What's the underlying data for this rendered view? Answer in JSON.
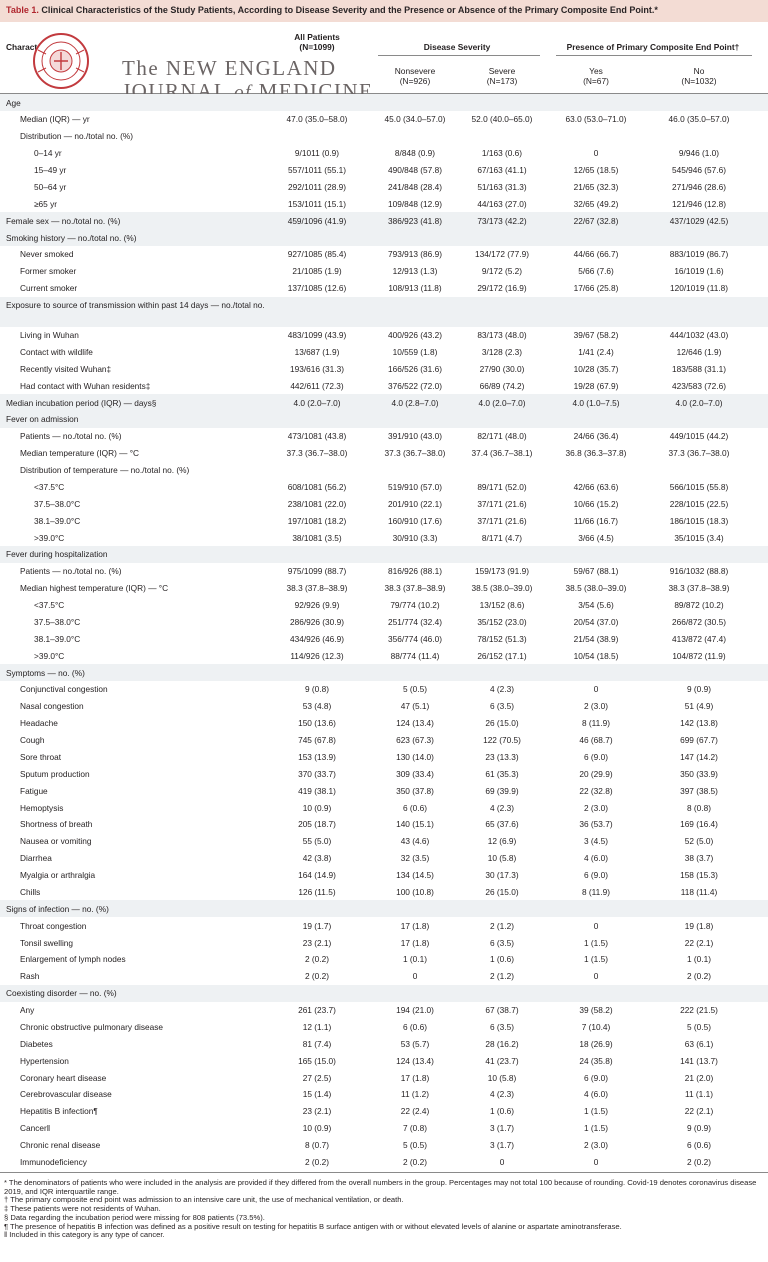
{
  "table": {
    "title_label": "Table 1.",
    "title_text": "Clinical Characteristics of the Study Patients, According to Disease Severity and the Presence or Absence of the Primary Composite End Point.*"
  },
  "header": {
    "characteristic": "Characteristic",
    "all_patients": "All Patients",
    "all_n": "(N=1099)",
    "disease_severity": "Disease Severity",
    "nonsevere": "Nonsevere",
    "nonsevere_n": "(N=926)",
    "severe": "Severe",
    "severe_n": "(N=173)",
    "end_point": "Presence of Primary Composite End Point†",
    "yes": "Yes",
    "yes_n": "(N=67)",
    "no": "No",
    "no_n": "(N=1032)"
  },
  "watermark": {
    "line1": "The NEW ENGLAND",
    "line2_a": "JOURNAL",
    "line2_of": "of",
    "line2_b": "MEDICINE",
    "seal_text": "MEDICINE · NEW ENGLAND"
  },
  "rows": [
    {
      "label": "Age",
      "indent": 0,
      "values": [
        "",
        "",
        "",
        "",
        ""
      ]
    },
    {
      "label": "Median (IQR) — yr",
      "indent": 1,
      "values": [
        "47.0 (35.0–58.0)",
        "45.0 (34.0–57.0)",
        "52.0 (40.0–65.0)",
        "63.0 (53.0–71.0)",
        "46.0 (35.0–57.0)"
      ]
    },
    {
      "label": "Distribution — no./total no. (%)",
      "indent": 1,
      "values": [
        "",
        "",
        "",
        "",
        ""
      ]
    },
    {
      "label": "0–14 yr",
      "indent": 2,
      "values": [
        "9/1011 (0.9)",
        "8/848 (0.9)",
        "1/163 (0.6)",
        "0",
        "9/946 (1.0)"
      ]
    },
    {
      "label": "15–49 yr",
      "indent": 2,
      "values": [
        "557/1011 (55.1)",
        "490/848 (57.8)",
        "67/163 (41.1)",
        "12/65 (18.5)",
        "545/946 (57.6)"
      ]
    },
    {
      "label": "50–64 yr",
      "indent": 2,
      "values": [
        "292/1011 (28.9)",
        "241/848 (28.4)",
        "51/163 (31.3)",
        "21/65 (32.3)",
        "271/946 (28.6)"
      ]
    },
    {
      "label": "≥65 yr",
      "indent": 2,
      "values": [
        "153/1011 (15.1)",
        "109/848 (12.9)",
        "44/163 (27.0)",
        "32/65 (49.2)",
        "121/946 (12.8)"
      ]
    },
    {
      "label": "Female sex — no./total no. (%)",
      "indent": 0,
      "values": [
        "459/1096 (41.9)",
        "386/923 (41.8)",
        "73/173 (42.2)",
        "22/67 (32.8)",
        "437/1029 (42.5)"
      ]
    },
    {
      "label": "Smoking history — no./total no. (%)",
      "indent": 0,
      "values": [
        "",
        "",
        "",
        "",
        ""
      ]
    },
    {
      "label": "Never smoked",
      "indent": 1,
      "values": [
        "927/1085 (85.4)",
        "793/913 (86.9)",
        "134/172 (77.9)",
        "44/66 (66.7)",
        "883/1019 (86.7)"
      ]
    },
    {
      "label": "Former smoker",
      "indent": 1,
      "values": [
        "21/1085 (1.9)",
        "12/913 (1.3)",
        "9/172 (5.2)",
        "5/66 (7.6)",
        "16/1019 (1.6)"
      ]
    },
    {
      "label": "Current smoker",
      "indent": 1,
      "values": [
        "137/1085 (12.6)",
        "108/913 (11.8)",
        "29/172 (16.9)",
        "17/66 (25.8)",
        "120/1019 (11.8)"
      ]
    },
    {
      "label": "Exposure to source of transmission within past 14 days — no./total no.",
      "indent": 0,
      "tall": true,
      "values": [
        "",
        "",
        "",
        "",
        ""
      ]
    },
    {
      "label": "Living in Wuhan",
      "indent": 1,
      "values": [
        "483/1099 (43.9)",
        "400/926 (43.2)",
        "83/173 (48.0)",
        "39/67 (58.2)",
        "444/1032 (43.0)"
      ]
    },
    {
      "label": "Contact with wildlife",
      "indent": 1,
      "values": [
        "13/687 (1.9)",
        "10/559 (1.8)",
        "3/128 (2.3)",
        "1/41 (2.4)",
        "12/646 (1.9)"
      ]
    },
    {
      "label": "Recently visited Wuhan‡",
      "indent": 1,
      "values": [
        "193/616 (31.3)",
        "166/526 (31.6)",
        "27/90 (30.0)",
        "10/28 (35.7)",
        "183/588 (31.1)"
      ]
    },
    {
      "label": "Had contact with Wuhan residents‡",
      "indent": 1,
      "values": [
        "442/611 (72.3)",
        "376/522 (72.0)",
        "66/89 (74.2)",
        "19/28 (67.9)",
        "423/583 (72.6)"
      ]
    },
    {
      "label": "Median incubation period (IQR) — days§",
      "indent": 0,
      "values": [
        "4.0 (2.0–7.0)",
        "4.0 (2.8–7.0)",
        "4.0 (2.0–7.0)",
        "4.0 (1.0–7.5)",
        "4.0 (2.0–7.0)"
      ]
    },
    {
      "label": "Fever on admission",
      "indent": 0,
      "values": [
        "",
        "",
        "",
        "",
        ""
      ]
    },
    {
      "label": "Patients — no./total no. (%)",
      "indent": 1,
      "values": [
        "473/1081 (43.8)",
        "391/910 (43.0)",
        "82/171 (48.0)",
        "24/66 (36.4)",
        "449/1015 (44.2)"
      ]
    },
    {
      "label": "Median temperature (IQR) — °C",
      "indent": 1,
      "values": [
        "37.3 (36.7–38.0)",
        "37.3 (36.7–38.0)",
        "37.4 (36.7–38.1)",
        "36.8 (36.3–37.8)",
        "37.3 (36.7–38.0)"
      ]
    },
    {
      "label": "Distribution of temperature — no./total no. (%)",
      "indent": 1,
      "values": [
        "",
        "",
        "",
        "",
        ""
      ]
    },
    {
      "label": "<37.5°C",
      "indent": 2,
      "values": [
        "608/1081 (56.2)",
        "519/910 (57.0)",
        "89/171 (52.0)",
        "42/66 (63.6)",
        "566/1015 (55.8)"
      ]
    },
    {
      "label": "37.5–38.0°C",
      "indent": 2,
      "values": [
        "238/1081 (22.0)",
        "201/910 (22.1)",
        "37/171 (21.6)",
        "10/66 (15.2)",
        "228/1015 (22.5)"
      ]
    },
    {
      "label": "38.1–39.0°C",
      "indent": 2,
      "values": [
        "197/1081 (18.2)",
        "160/910 (17.6)",
        "37/171 (21.6)",
        "11/66 (16.7)",
        "186/1015 (18.3)"
      ]
    },
    {
      "label": ">39.0°C",
      "indent": 2,
      "values": [
        "38/1081 (3.5)",
        "30/910 (3.3)",
        "8/171 (4.7)",
        "3/66 (4.5)",
        "35/1015 (3.4)"
      ]
    },
    {
      "label": "Fever during hospitalization",
      "indent": 0,
      "values": [
        "",
        "",
        "",
        "",
        ""
      ]
    },
    {
      "label": "Patients — no./total no. (%)",
      "indent": 1,
      "values": [
        "975/1099 (88.7)",
        "816/926 (88.1)",
        "159/173 (91.9)",
        "59/67 (88.1)",
        "916/1032 (88.8)"
      ]
    },
    {
      "label": "Median highest temperature (IQR) — °C",
      "indent": 1,
      "values": [
        "38.3 (37.8–38.9)",
        "38.3 (37.8–38.9)",
        "38.5 (38.0–39.0)",
        "38.5 (38.0–39.0)",
        "38.3 (37.8–38.9)"
      ]
    },
    {
      "label": "<37.5°C",
      "indent": 2,
      "values": [
        "92/926 (9.9)",
        "79/774 (10.2)",
        "13/152 (8.6)",
        "3/54 (5.6)",
        "89/872 (10.2)"
      ]
    },
    {
      "label": "37.5–38.0°C",
      "indent": 2,
      "values": [
        "286/926 (30.9)",
        "251/774 (32.4)",
        "35/152 (23.0)",
        "20/54 (37.0)",
        "266/872 (30.5)"
      ]
    },
    {
      "label": "38.1–39.0°C",
      "indent": 2,
      "values": [
        "434/926 (46.9)",
        "356/774 (46.0)",
        "78/152 (51.3)",
        "21/54 (38.9)",
        "413/872 (47.4)"
      ]
    },
    {
      "label": ">39.0°C",
      "indent": 2,
      "values": [
        "114/926 (12.3)",
        "88/774 (11.4)",
        "26/152 (17.1)",
        "10/54 (18.5)",
        "104/872 (11.9)"
      ]
    },
    {
      "label": "Symptoms — no. (%)",
      "indent": 0,
      "values": [
        "",
        "",
        "",
        "",
        ""
      ]
    },
    {
      "label": "Conjunctival congestion",
      "indent": 1,
      "values": [
        "9 (0.8)",
        "5 (0.5)",
        "4 (2.3)",
        "0",
        "9 (0.9)"
      ]
    },
    {
      "label": "Nasal congestion",
      "indent": 1,
      "values": [
        "53 (4.8)",
        "47 (5.1)",
        "6 (3.5)",
        "2 (3.0)",
        "51 (4.9)"
      ]
    },
    {
      "label": "Headache",
      "indent": 1,
      "values": [
        "150 (13.6)",
        "124 (13.4)",
        "26 (15.0)",
        "8 (11.9)",
        "142 (13.8)"
      ]
    },
    {
      "label": "Cough",
      "indent": 1,
      "values": [
        "745 (67.8)",
        "623 (67.3)",
        "122 (70.5)",
        "46 (68.7)",
        "699 (67.7)"
      ]
    },
    {
      "label": "Sore throat",
      "indent": 1,
      "values": [
        "153 (13.9)",
        "130 (14.0)",
        "23 (13.3)",
        "6 (9.0)",
        "147 (14.2)"
      ]
    },
    {
      "label": "Sputum production",
      "indent": 1,
      "values": [
        "370 (33.7)",
        "309 (33.4)",
        "61 (35.3)",
        "20 (29.9)",
        "350 (33.9)"
      ]
    },
    {
      "label": "Fatigue",
      "indent": 1,
      "values": [
        "419 (38.1)",
        "350 (37.8)",
        "69 (39.9)",
        "22 (32.8)",
        "397 (38.5)"
      ]
    },
    {
      "label": "Hemoptysis",
      "indent": 1,
      "values": [
        "10 (0.9)",
        "6 (0.6)",
        "4 (2.3)",
        "2 (3.0)",
        "8 (0.8)"
      ]
    },
    {
      "label": "Shortness of breath",
      "indent": 1,
      "values": [
        "205 (18.7)",
        "140 (15.1)",
        "65 (37.6)",
        "36 (53.7)",
        "169 (16.4)"
      ]
    },
    {
      "label": "Nausea or vomiting",
      "indent": 1,
      "values": [
        "55 (5.0)",
        "43 (4.6)",
        "12 (6.9)",
        "3 (4.5)",
        "52 (5.0)"
      ]
    },
    {
      "label": "Diarrhea",
      "indent": 1,
      "values": [
        "42 (3.8)",
        "32 (3.5)",
        "10 (5.8)",
        "4 (6.0)",
        "38 (3.7)"
      ]
    },
    {
      "label": "Myalgia or arthralgia",
      "indent": 1,
      "values": [
        "164 (14.9)",
        "134 (14.5)",
        "30 (17.3)",
        "6 (9.0)",
        "158 (15.3)"
      ]
    },
    {
      "label": "Chills",
      "indent": 1,
      "values": [
        "126 (11.5)",
        "100 (10.8)",
        "26 (15.0)",
        "8 (11.9)",
        "118 (11.4)"
      ]
    },
    {
      "label": "Signs of infection — no. (%)",
      "indent": 0,
      "values": [
        "",
        "",
        "",
        "",
        ""
      ]
    },
    {
      "label": "Throat congestion",
      "indent": 1,
      "values": [
        "19 (1.7)",
        "17 (1.8)",
        "2 (1.2)",
        "0",
        "19 (1.8)"
      ]
    },
    {
      "label": "Tonsil swelling",
      "indent": 1,
      "values": [
        "23 (2.1)",
        "17 (1.8)",
        "6 (3.5)",
        "1 (1.5)",
        "22 (2.1)"
      ]
    },
    {
      "label": "Enlargement of lymph nodes",
      "indent": 1,
      "values": [
        "2 (0.2)",
        "1 (0.1)",
        "1 (0.6)",
        "1 (1.5)",
        "1 (0.1)"
      ]
    },
    {
      "label": "Rash",
      "indent": 1,
      "values": [
        "2 (0.2)",
        "0",
        "2 (1.2)",
        "0",
        "2 (0.2)"
      ]
    },
    {
      "label": "Coexisting disorder — no. (%)",
      "indent": 0,
      "values": [
        "",
        "",
        "",
        "",
        ""
      ]
    },
    {
      "label": "Any",
      "indent": 1,
      "values": [
        "261 (23.7)",
        "194 (21.0)",
        "67 (38.7)",
        "39 (58.2)",
        "222 (21.5)"
      ]
    },
    {
      "label": "Chronic obstructive pulmonary disease",
      "indent": 1,
      "values": [
        "12 (1.1)",
        "6 (0.6)",
        "6 (3.5)",
        "7 (10.4)",
        "5 (0.5)"
      ]
    },
    {
      "label": "Diabetes",
      "indent": 1,
      "values": [
        "81 (7.4)",
        "53 (5.7)",
        "28 (16.2)",
        "18 (26.9)",
        "63 (6.1)"
      ]
    },
    {
      "label": "Hypertension",
      "indent": 1,
      "values": [
        "165 (15.0)",
        "124 (13.4)",
        "41 (23.7)",
        "24 (35.8)",
        "141 (13.7)"
      ]
    },
    {
      "label": "Coronary heart disease",
      "indent": 1,
      "values": [
        "27 (2.5)",
        "17 (1.8)",
        "10 (5.8)",
        "6 (9.0)",
        "21 (2.0)"
      ]
    },
    {
      "label": "Cerebrovascular disease",
      "indent": 1,
      "values": [
        "15 (1.4)",
        "11 (1.2)",
        "4 (2.3)",
        "4 (6.0)",
        "11 (1.1)"
      ]
    },
    {
      "label": "Hepatitis B infection¶",
      "indent": 1,
      "values": [
        "23 (2.1)",
        "22 (2.4)",
        "1 (0.6)",
        "1 (1.5)",
        "22 (2.1)"
      ]
    },
    {
      "label": "Cancer‖",
      "indent": 1,
      "values": [
        "10 (0.9)",
        "7 (0.8)",
        "3 (1.7)",
        "1 (1.5)",
        "9 (0.9)"
      ]
    },
    {
      "label": "Chronic renal disease",
      "indent": 1,
      "values": [
        "8 (0.7)",
        "5 (0.5)",
        "3 (1.7)",
        "2 (3.0)",
        "6 (0.6)"
      ]
    },
    {
      "label": "Immunodeficiency",
      "indent": 1,
      "values": [
        "2 (0.2)",
        "2 (0.2)",
        "0",
        "0",
        "2 (0.2)"
      ]
    }
  ],
  "footnotes": [
    "* The denominators of patients who were included in the analysis are provided if they differed from the overall numbers in the group. Percentages may not total 100 because of rounding. Covid-19 denotes coronavirus disease 2019, and IQR interquartile range.",
    "† The primary composite end point was admission to an intensive care unit, the use of mechanical ventilation, or death.",
    "‡ These patients were not residents of Wuhan.",
    "§ Data regarding the incubation period were missing for 808 patients (73.5%).",
    "¶ The presence of hepatitis B infection was defined as a positive result on testing for hepatitis B surface antigen with or without elevated levels of alanine or aspartate aminotransferase.",
    "‖ Included in this category is any type of cancer."
  ]
}
